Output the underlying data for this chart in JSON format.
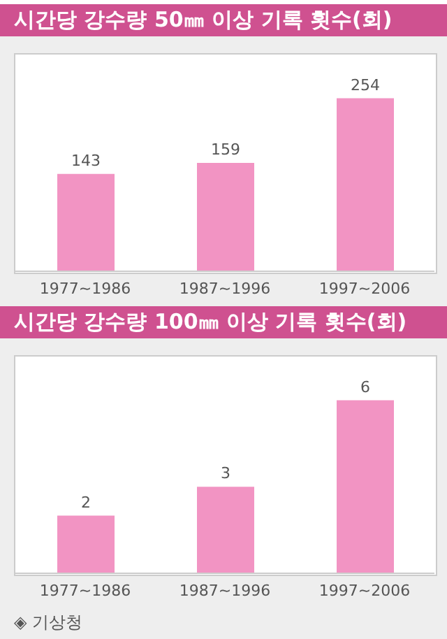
{
  "chart_data": [
    {
      "type": "bar",
      "title": "시간당 강수량 50㎜ 이상 기록 횟수(회)",
      "categories": [
        "1977~1986",
        "1987~1996",
        "1997~2006"
      ],
      "values": [
        143,
        159,
        254
      ],
      "color": "#f294c3",
      "data_labels": true
    },
    {
      "type": "bar",
      "title": "시간당 강수량 100㎜ 이상 기록 횟수(회)",
      "categories": [
        "1977~1986",
        "1987~1996",
        "1997~2006"
      ],
      "values": [
        2,
        3,
        6
      ],
      "color": "#f294c3",
      "data_labels": true,
      "annotations": [
        "◈ 기상청"
      ]
    }
  ]
}
